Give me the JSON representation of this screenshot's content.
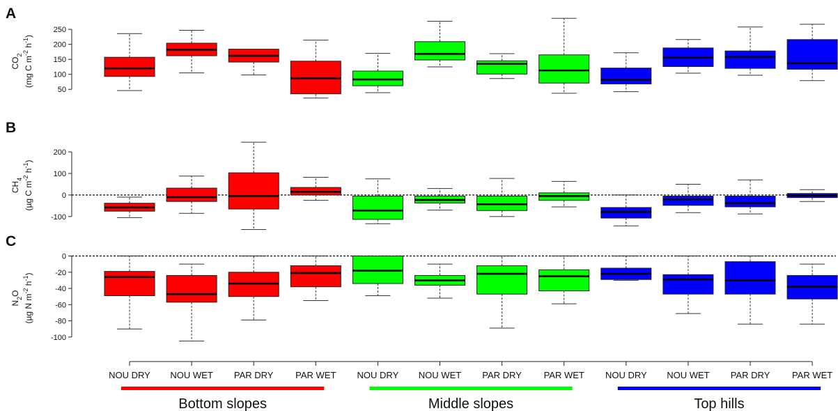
{
  "chart_data": {
    "type": "box",
    "categories": [
      "NOU DRY",
      "NOU WET",
      "PAR DRY",
      "PAR WET",
      "NOU DRY",
      "NOU WET",
      "PAR DRY",
      "PAR WET",
      "NOU DRY",
      "NOU WET",
      "PAR DRY",
      "PAR WET"
    ],
    "groups": [
      {
        "label": "Bottom slopes",
        "color": "#ff0000",
        "start": 0,
        "end": 3
      },
      {
        "label": "Middle slopes",
        "color": "#00ff00",
        "start": 4,
        "end": 7
      },
      {
        "label": "Top hills",
        "color": "#0000ff",
        "start": 8,
        "end": 11
      }
    ],
    "panels": [
      {
        "letter": "A",
        "ylabel_main": "CO",
        "ylabel_sub": "2",
        "ylabel_unit": "(mg C m",
        "ylabel_exp1": "-2",
        "ylabel_mid": " h",
        "ylabel_exp2": "-1",
        "ylabel_end": ")",
        "ylim": [
          25,
          262
        ],
        "yticks": [
          50,
          100,
          150,
          200,
          250
        ],
        "zero_line": false,
        "boxes": [
          {
            "min": 46,
            "q1": 93,
            "median": 120,
            "q3": 157,
            "max": 236
          },
          {
            "min": 105,
            "q1": 162,
            "median": 182,
            "q3": 204,
            "max": 247
          },
          {
            "min": 98,
            "q1": 141,
            "median": 162,
            "q3": 184,
            "max": null
          },
          {
            "min": 21,
            "q1": 35,
            "median": 87,
            "q3": 144,
            "max": 214
          },
          {
            "min": 39,
            "q1": 62,
            "median": 83,
            "q3": 111,
            "max": 170
          },
          {
            "min": 125,
            "q1": 148,
            "median": 168,
            "q3": 209,
            "max": 277
          },
          {
            "min": 86,
            "q1": 101,
            "median": 135,
            "q3": 145,
            "max": 169
          },
          {
            "min": 37,
            "q1": 71,
            "median": 113,
            "q3": 165,
            "max": 287
          },
          {
            "min": 42,
            "q1": 68,
            "median": 82,
            "q3": 121,
            "max": 172
          },
          {
            "min": 104,
            "q1": 126,
            "median": 156,
            "q3": 188,
            "max": 216
          },
          {
            "min": 97,
            "q1": 120,
            "median": 158,
            "q3": 178,
            "max": 258
          },
          {
            "min": 79,
            "q1": 117,
            "median": 137,
            "q3": 216,
            "max": 267
          }
        ]
      },
      {
        "letter": "B",
        "ylabel_main": "CH",
        "ylabel_sub": "4",
        "ylabel_unit": "(µg C m",
        "ylabel_exp1": "-2",
        "ylabel_mid": " h",
        "ylabel_exp2": "-1",
        "ylabel_end": ")",
        "ylim": [
          -165,
          255
        ],
        "yticks": [
          -100,
          0,
          100,
          200
        ],
        "zero_line": true,
        "boxes": [
          {
            "min": -105,
            "q1": -75,
            "median": -58,
            "q3": -38,
            "max": -10
          },
          {
            "min": -85,
            "q1": -30,
            "median": -10,
            "q3": 32,
            "max": 88
          },
          {
            "min": -160,
            "q1": -65,
            "median": -5,
            "q3": 103,
            "max": 245
          },
          {
            "min": -25,
            "q1": 0,
            "median": 15,
            "q3": 35,
            "max": 82
          },
          {
            "min": -133,
            "q1": -113,
            "median": -72,
            "q3": -5,
            "max": 75
          },
          {
            "min": -70,
            "q1": -37,
            "median": -23,
            "q3": -5,
            "max": 30
          },
          {
            "min": -100,
            "q1": -72,
            "median": -43,
            "q3": -5,
            "max": 77
          },
          {
            "min": -55,
            "q1": -25,
            "median": -5,
            "q3": 10,
            "max": 63
          },
          {
            "min": -143,
            "q1": -107,
            "median": -78,
            "q3": -58,
            "max": 0
          },
          {
            "min": -82,
            "q1": -48,
            "median": -20,
            "q3": -5,
            "max": 50
          },
          {
            "min": -88,
            "q1": -55,
            "median": -38,
            "q3": -5,
            "max": 70
          },
          {
            "min": -30,
            "q1": -12,
            "median": -3,
            "q3": 7,
            "max": 25
          }
        ]
      },
      {
        "letter": "C",
        "ylabel_main": "N",
        "ylabel_sub": "2",
        "ylabel_post": "O",
        "ylabel_unit": "(µg N m",
        "ylabel_exp1": "-2",
        "ylabel_mid": " h",
        "ylabel_exp2": "-1",
        "ylabel_end": ")",
        "ylim": [
          -107,
          3
        ],
        "yticks": [
          -100,
          -80,
          -60,
          -40,
          -20,
          0
        ],
        "zero_line": true,
        "boxes": [
          {
            "min": -90,
            "q1": -49,
            "median": -26,
            "q3": -19,
            "max": 0
          },
          {
            "min": -105,
            "q1": -57,
            "median": -47,
            "q3": -24,
            "max": -10
          },
          {
            "min": -79,
            "q1": -50,
            "median": -34,
            "q3": -20,
            "max": 0
          },
          {
            "min": -55,
            "q1": -38,
            "median": -21,
            "q3": -12,
            "max": 0
          },
          {
            "min": -49,
            "q1": -34,
            "median": -18,
            "q3": 0,
            "max": 0
          },
          {
            "min": -52,
            "q1": -36,
            "median": -30,
            "q3": -24,
            "max": -10
          },
          {
            "min": -89,
            "q1": -47,
            "median": -22,
            "q3": -12,
            "max": 0
          },
          {
            "min": -59,
            "q1": -43,
            "median": -25,
            "q3": -17,
            "max": 0
          },
          {
            "min": -30,
            "q1": -29,
            "median": -22,
            "q3": -15,
            "max": 0
          },
          {
            "min": -71,
            "q1": -47,
            "median": -29,
            "q3": -23,
            "max": 0
          },
          {
            "min": -84,
            "q1": -47,
            "median": -30,
            "q3": -7,
            "max": 0
          },
          {
            "min": -84,
            "q1": -53,
            "median": -38,
            "q3": -24,
            "max": -10
          }
        ]
      }
    ]
  }
}
